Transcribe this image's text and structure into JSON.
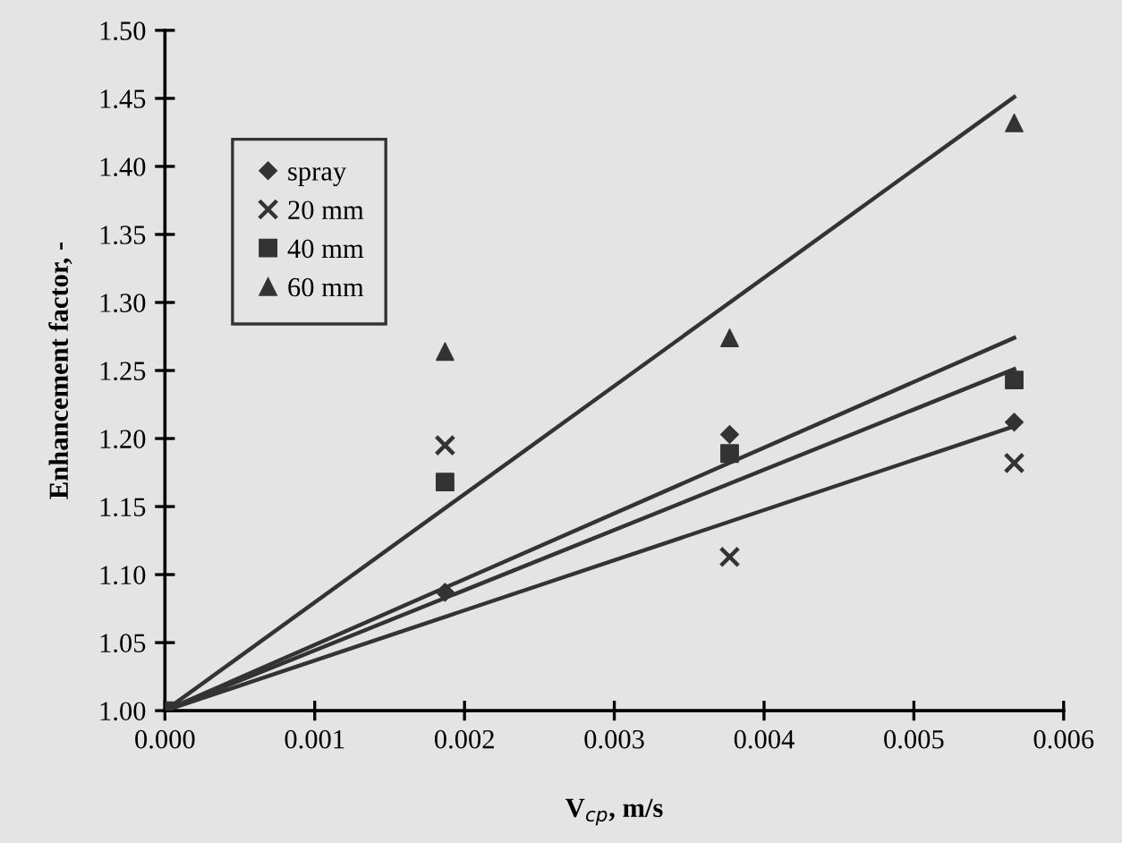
{
  "chart_data": {
    "type": "scatter",
    "xlabel": "V$_{cp}$, m/s",
    "ylabel": "Enhancement factor, -",
    "x": [
      0,
      0.00187,
      0.00377,
      0.00567
    ],
    "series": [
      {
        "name": "spray",
        "color": "#333333",
        "marker": "diamond",
        "values": [
          null,
          1.087,
          1.203,
          1.212
        ]
      },
      {
        "name": "20 mm",
        "color": "#333333",
        "marker": "cross",
        "values": [
          null,
          1.195,
          1.113,
          1.182
        ]
      },
      {
        "name": "40 mm",
        "color": "#333333",
        "marker": "square",
        "values": [
          1.0,
          1.168,
          1.189,
          1.243
        ]
      },
      {
        "name": "60 mm",
        "color": "#333333",
        "marker": "triangle",
        "values": [
          null,
          1.264,
          1.274,
          1.432
        ]
      },
      {
        "type": "line",
        "color": "#333333",
        "values": [
          1.0,
          null,
          null,
          1.451
        ]
      },
      {
        "type": "line",
        "color": "#333333",
        "values": [
          1.0,
          null,
          null,
          1.274
        ]
      },
      {
        "type": "line",
        "color": "#333333",
        "values": [
          1.0,
          null,
          null,
          1.251
        ]
      },
      {
        "type": "line",
        "color": "#333333",
        "values": [
          1.0,
          null,
          null,
          1.209
        ]
      }
    ],
    "xlim": [
      0,
      0.006
    ],
    "ylim": [
      1.0,
      1.5
    ],
    "xticks": [
      {
        "value": 0,
        "label": "0.000"
      },
      0.001,
      0.002,
      0.003,
      0.004,
      0.005,
      0.006
    ],
    "yticks": [
      {
        "value": 1.0,
        "label": "1.00"
      },
      1.05,
      {
        "value": 1.1,
        "label": "1.10"
      },
      1.15,
      {
        "value": 1.2,
        "label": "1.20"
      },
      1.25,
      {
        "value": 1.3,
        "label": "1.30"
      },
      1.35,
      {
        "value": 1.4,
        "label": "1.40"
      },
      1.45,
      {
        "value": 1.5,
        "label": "1.50"
      }
    ],
    "grid": false,
    "legend": "top left",
    "line_style": "solid"
  }
}
